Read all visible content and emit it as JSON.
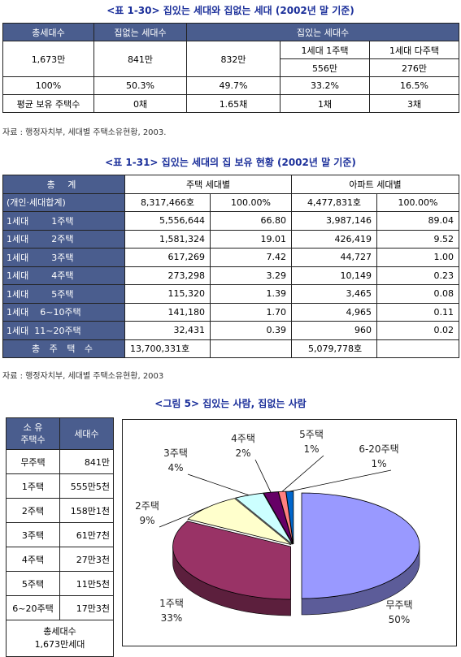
{
  "table1": {
    "title": "<표 1-30> 집있는 세대와 집없는 세대 (2002년 말 기준)",
    "headers": [
      "총세대수",
      "집없는 세대수",
      "집있는 세대수"
    ],
    "sub_headers": [
      "1세대 1주택",
      "1세대 다주택"
    ],
    "row1": [
      "1,673만",
      "841만",
      "832만",
      "556만",
      "276만"
    ],
    "row2": [
      "100%",
      "50.3%",
      "49.7%",
      "33.2%",
      "16.5%"
    ],
    "row3": [
      "평균 보유 주택수",
      "0채",
      "1.65채",
      "1채",
      "3채"
    ],
    "source": "자료 : 행정자치부, 세대별 주택소유현황, 2003."
  },
  "table2": {
    "title": "<표 1-31> 집있는 세대의 집 보유 현황 (2002년 말 기준)",
    "header_left": "총 계",
    "header_left_sub": "(개인·세대합계)",
    "col_house": "주택 세대별",
    "col_apt": "아파트 세대별",
    "total_row": [
      "8,317,466호",
      "100.00%",
      "4,477,831호",
      "100.00%"
    ],
    "rows": [
      {
        "label": "1세대        1주택",
        "v": [
          "5,556,644",
          "66.80",
          "3,987,146",
          "89.04"
        ]
      },
      {
        "label": "1세대        2주택",
        "v": [
          "1,581,324",
          "19.01",
          "426,419",
          "9.52"
        ]
      },
      {
        "label": "1세대        3주택",
        "v": [
          "617,269",
          "7.42",
          "44,727",
          "1.00"
        ]
      },
      {
        "label": "1세대        4주택",
        "v": [
          "273,298",
          "3.29",
          "10,149",
          "0.23"
        ]
      },
      {
        "label": "1세대        5주택",
        "v": [
          "115,320",
          "1.39",
          "3,465",
          "0.08"
        ]
      },
      {
        "label": "1세대    6~10주택",
        "v": [
          "141,180",
          "1.70",
          "4,965",
          "0.11"
        ]
      },
      {
        "label": "1세대  11~20주택",
        "v": [
          "32,431",
          "0.39",
          "960",
          "0.02"
        ]
      }
    ],
    "sum_label": "총 주 택 수",
    "sum_row": [
      "13,700,331호",
      "5,079,778호"
    ],
    "source": "자료 : 행정자치부, 세대별 주택소유현황, 2003"
  },
  "figure": {
    "title": "<그림 5> 집있는 사람, 집없는 사람",
    "table_header": [
      "소 유\n주택수",
      "세대수"
    ],
    "table_rows": [
      [
        "무주택",
        "841만"
      ],
      [
        "1주택",
        "555만5천"
      ],
      [
        "2주택",
        "158만1천"
      ],
      [
        "3주택",
        "61만7천"
      ],
      [
        "4주택",
        "27만3천"
      ],
      [
        "5주택",
        "11만5천"
      ],
      [
        "6~20주택",
        "17만3천"
      ]
    ],
    "table_footer_1": "총세대수",
    "table_footer_2": "1,673만세대"
  },
  "chart_data": {
    "type": "pie",
    "title": "",
    "slices": [
      {
        "name": "무주택",
        "value": 50,
        "label": "50%",
        "color": "#9999ff"
      },
      {
        "name": "1주택",
        "value": 33,
        "label": "33%",
        "color": "#993366"
      },
      {
        "name": "2주택",
        "value": 9,
        "label": "9%",
        "color": "#ffffcc"
      },
      {
        "name": "3주택",
        "value": 4,
        "label": "4%",
        "color": "#ccffff"
      },
      {
        "name": "4주택",
        "value": 2,
        "label": "2%",
        "color": "#660066"
      },
      {
        "name": "5주택",
        "value": 1,
        "label": "1%",
        "color": "#ff8080"
      },
      {
        "name": "6-20주택",
        "value": 1,
        "label": "1%",
        "color": "#0066cc"
      }
    ]
  }
}
